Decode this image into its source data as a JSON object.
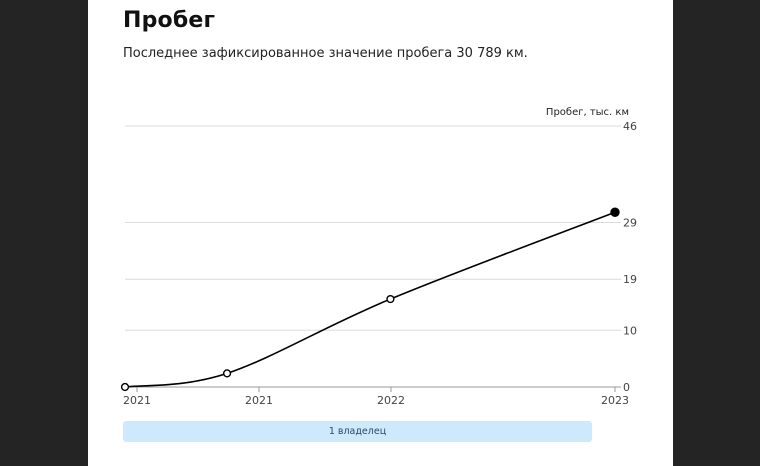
{
  "title": "Пробег",
  "subtitle": "Последнее зафиксированное значение пробега 30 789 км.",
  "owner_bar": {
    "label": "1 владелец"
  },
  "colors": {
    "background": "#242424",
    "card": "#ffffff",
    "line": "#000000",
    "grid": "#dcdcdc",
    "owner_bar": "#cde9fb"
  },
  "chart_data": {
    "type": "line",
    "title": "",
    "xlabel": "",
    "ylabel": "Пробег, тыс. км",
    "y_ticks": [
      0,
      10,
      19,
      29,
      46
    ],
    "ylim": [
      0,
      46
    ],
    "x_ticks": [
      "2021",
      "2021",
      "2022",
      "2023"
    ],
    "xlim": [
      "2021-01",
      "2023-01"
    ],
    "grid": true,
    "series": [
      {
        "x": [
          "2021-01",
          "2021-06",
          "2022-02",
          "2023-01"
        ],
        "values": [
          0,
          2.4,
          15.5,
          30.8
        ],
        "marker_style": [
          "open",
          "open",
          "open",
          "filled"
        ]
      }
    ]
  }
}
